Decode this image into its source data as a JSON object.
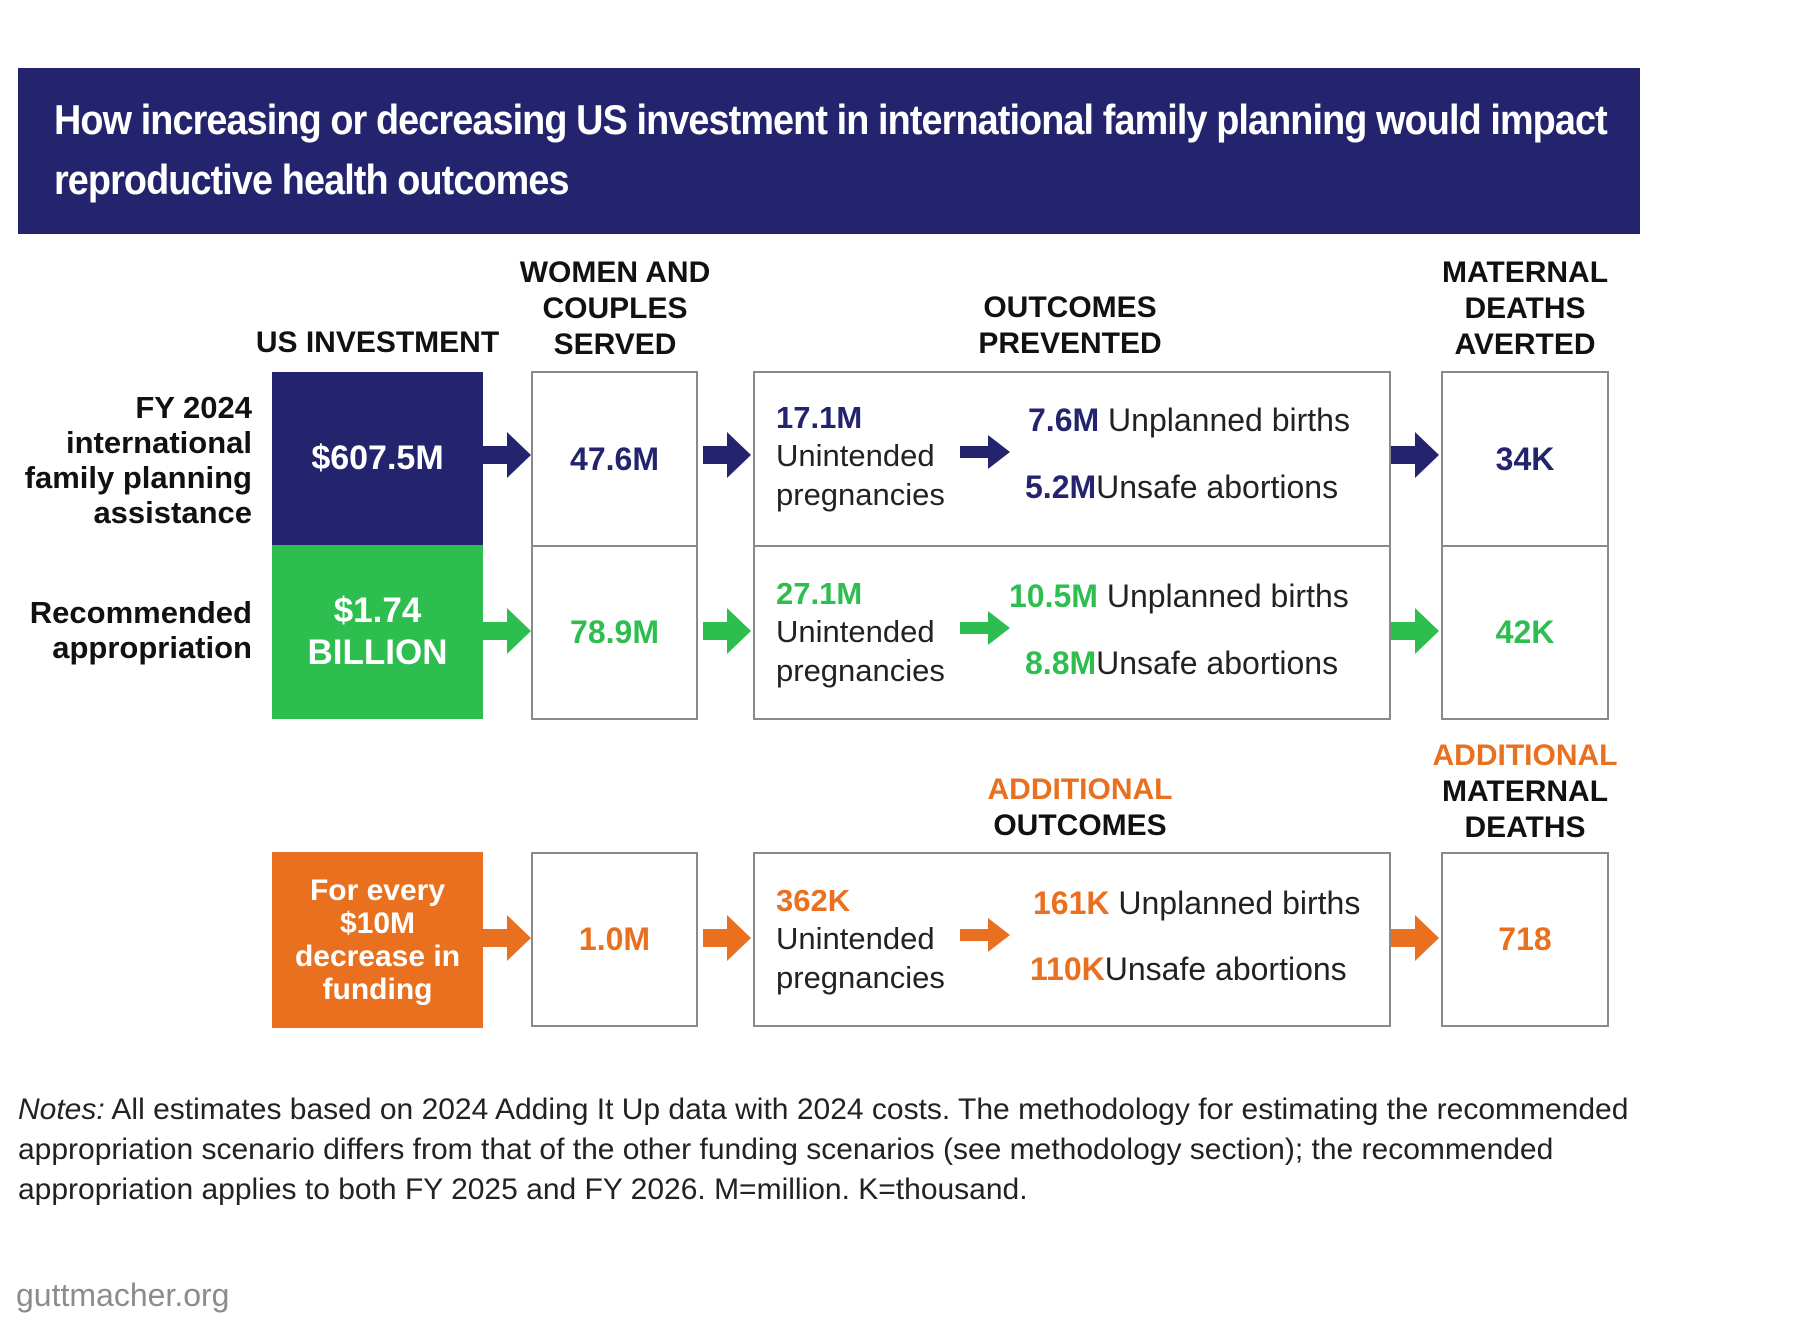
{
  "title": {
    "line1": "How increasing or decreasing US investment in international family planning would impact",
    "line2": "reproductive health outcomes"
  },
  "headers": {
    "investment": "US INVESTMENT",
    "served": [
      "WOMEN AND",
      "COUPLES",
      "SERVED"
    ],
    "outcomes": [
      "OUTCOMES",
      "PREVENTED"
    ],
    "deaths": [
      "MATERNAL",
      "DEATHS",
      "AVERTED"
    ],
    "additional_outcomes": [
      "ADDITIONAL",
      "OUTCOMES"
    ],
    "additional_deaths": [
      "ADDITIONAL",
      "MATERNAL",
      "DEATHS"
    ]
  },
  "rows": [
    {
      "label": [
        "FY 2024",
        "international",
        "family planning",
        "assistance"
      ],
      "investment": [
        "$607.5M"
      ],
      "served": "47.6M",
      "unintended_value": "17.1M",
      "unintended_label": [
        "Unintended",
        "pregnancies"
      ],
      "births_value": "7.6M",
      "births_label": "Unplanned births",
      "abortions_value": "5.2M",
      "abortions_label": "Unsafe abortions",
      "deaths": "34K"
    },
    {
      "label": [
        "Recommended",
        "appropriation"
      ],
      "investment": [
        "$1.74",
        "BILLION"
      ],
      "served": "78.9M",
      "unintended_value": "27.1M",
      "unintended_label": [
        "Unintended",
        "pregnancies"
      ],
      "births_value": "10.5M",
      "births_label": "Unplanned births",
      "abortions_value": "8.8M",
      "abortions_label": "Unsafe abortions",
      "deaths": "42K"
    },
    {
      "label": [],
      "investment": [
        "For every",
        "$10M",
        "decrease in",
        "funding"
      ],
      "served": "1.0M",
      "unintended_value": "362K",
      "unintended_label": [
        "Unintended",
        "pregnancies"
      ],
      "births_value": "161K",
      "births_label": "Unplanned births",
      "abortions_value": "110K",
      "abortions_label": "Unsafe abortions",
      "deaths": "718"
    }
  ],
  "colors": {
    "navy": "#23246d",
    "green": "#2dbe4f",
    "orange": "#e8701f",
    "border": "#8a8a8a"
  },
  "notes": {
    "lead": "Notes:",
    "text": " All estimates based on 2024 Adding It Up data with 2024 costs. The methodology for estimating the recommended appropriation scenario differs from that of the other funding scenarios (see methodology section); the recommended appropriation applies to both FY 2025 and FY 2026. M=million. K=thousand."
  },
  "footer": "guttmacher.org"
}
